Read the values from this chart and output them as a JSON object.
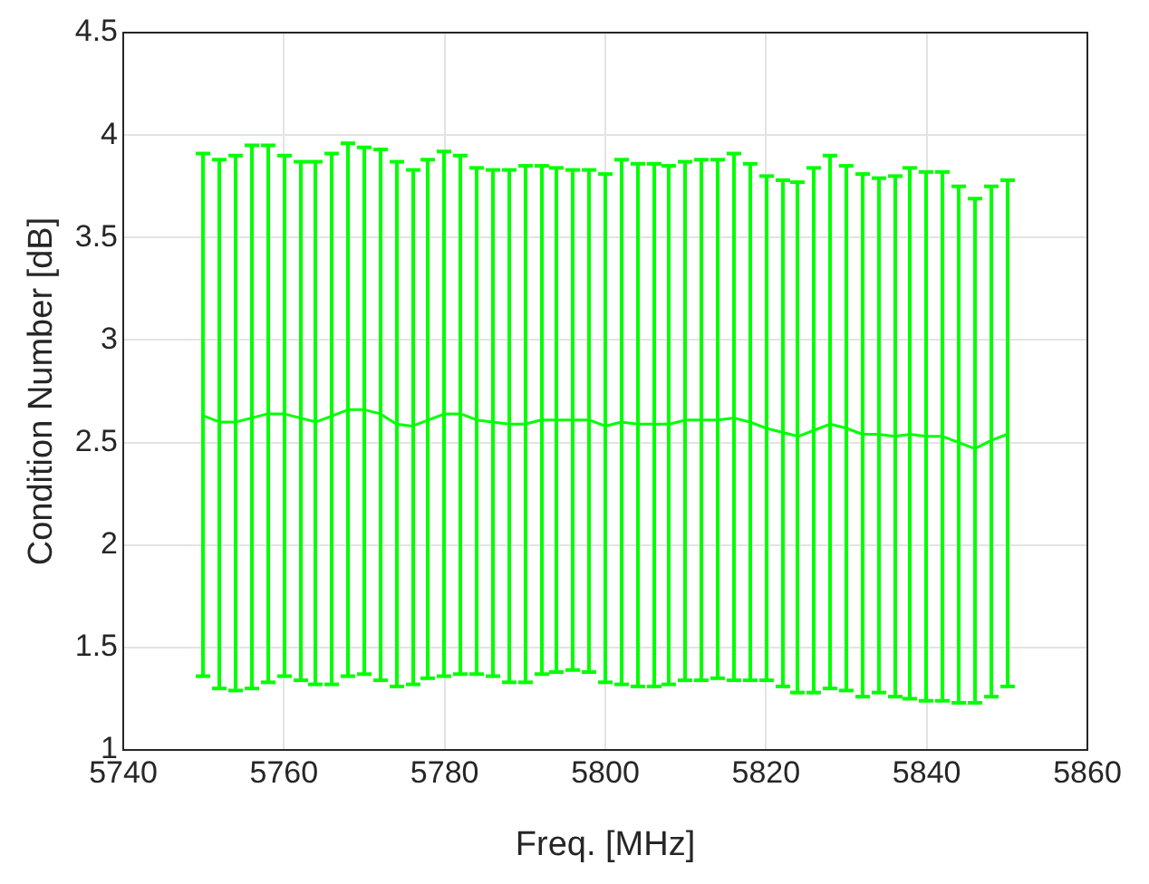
{
  "chart_data": {
    "type": "line",
    "xlabel": "Freq. [MHz]",
    "ylabel": "Condition Number [dB]",
    "x": [
      5750,
      5752,
      5754,
      5756,
      5758,
      5760,
      5762,
      5764,
      5766,
      5768,
      5770,
      5772,
      5774,
      5776,
      5778,
      5780,
      5782,
      5784,
      5786,
      5788,
      5790,
      5792,
      5794,
      5796,
      5798,
      5800,
      5802,
      5804,
      5806,
      5808,
      5810,
      5812,
      5814,
      5816,
      5818,
      5820,
      5822,
      5824,
      5826,
      5828,
      5830,
      5832,
      5834,
      5836,
      5838,
      5840,
      5842,
      5844,
      5846,
      5848,
      5850
    ],
    "series": [
      {
        "color": "#00ff00",
        "values": [
          2.63,
          2.6,
          2.6,
          2.62,
          2.64,
          2.64,
          2.62,
          2.6,
          2.63,
          2.66,
          2.66,
          2.64,
          2.59,
          2.58,
          2.61,
          2.64,
          2.64,
          2.61,
          2.6,
          2.59,
          2.59,
          2.61,
          2.61,
          2.61,
          2.61,
          2.58,
          2.6,
          2.59,
          2.59,
          2.59,
          2.61,
          2.61,
          2.61,
          2.62,
          2.6,
          2.57,
          2.55,
          2.53,
          2.56,
          2.59,
          2.57,
          2.54,
          2.54,
          2.53,
          2.54,
          2.53,
          2.53,
          2.5,
          2.47,
          2.51,
          2.54
        ],
        "errors": [
          [
            1.36,
            3.91
          ],
          [
            1.3,
            3.88
          ],
          [
            1.29,
            3.9
          ],
          [
            1.3,
            3.95
          ],
          [
            1.33,
            3.95
          ],
          [
            1.36,
            3.9
          ],
          [
            1.34,
            3.87
          ],
          [
            1.32,
            3.87
          ],
          [
            1.32,
            3.91
          ],
          [
            1.36,
            3.96
          ],
          [
            1.37,
            3.94
          ],
          [
            1.34,
            3.93
          ],
          [
            1.31,
            3.87
          ],
          [
            1.32,
            3.83
          ],
          [
            1.35,
            3.88
          ],
          [
            1.36,
            3.92
          ],
          [
            1.37,
            3.9
          ],
          [
            1.37,
            3.84
          ],
          [
            1.36,
            3.83
          ],
          [
            1.33,
            3.83
          ],
          [
            1.33,
            3.85
          ],
          [
            1.37,
            3.85
          ],
          [
            1.38,
            3.84
          ],
          [
            1.39,
            3.83
          ],
          [
            1.38,
            3.83
          ],
          [
            1.33,
            3.81
          ],
          [
            1.32,
            3.88
          ],
          [
            1.31,
            3.86
          ],
          [
            1.31,
            3.86
          ],
          [
            1.32,
            3.85
          ],
          [
            1.34,
            3.87
          ],
          [
            1.34,
            3.88
          ],
          [
            1.35,
            3.88
          ],
          [
            1.34,
            3.91
          ],
          [
            1.34,
            3.86
          ],
          [
            1.34,
            3.8
          ],
          [
            1.31,
            3.78
          ],
          [
            1.28,
            3.77
          ],
          [
            1.28,
            3.84
          ],
          [
            1.3,
            3.9
          ],
          [
            1.29,
            3.85
          ],
          [
            1.26,
            3.81
          ],
          [
            1.28,
            3.79
          ],
          [
            1.26,
            3.8
          ],
          [
            1.25,
            3.84
          ],
          [
            1.24,
            3.82
          ],
          [
            1.24,
            3.82
          ],
          [
            1.23,
            3.75
          ],
          [
            1.23,
            3.69
          ],
          [
            1.26,
            3.75
          ],
          [
            1.31,
            3.78
          ]
        ]
      }
    ],
    "xlim": [
      5740,
      5860
    ],
    "xticks": [
      5740,
      5760,
      5780,
      5800,
      5820,
      5840,
      5860
    ],
    "ylim": [
      1,
      4.5
    ],
    "yticks": [
      1,
      1.5,
      2,
      2.5,
      3,
      3.5,
      4,
      4.5
    ],
    "grid": true,
    "legend": false,
    "marker": "none",
    "line_style": "solid"
  }
}
